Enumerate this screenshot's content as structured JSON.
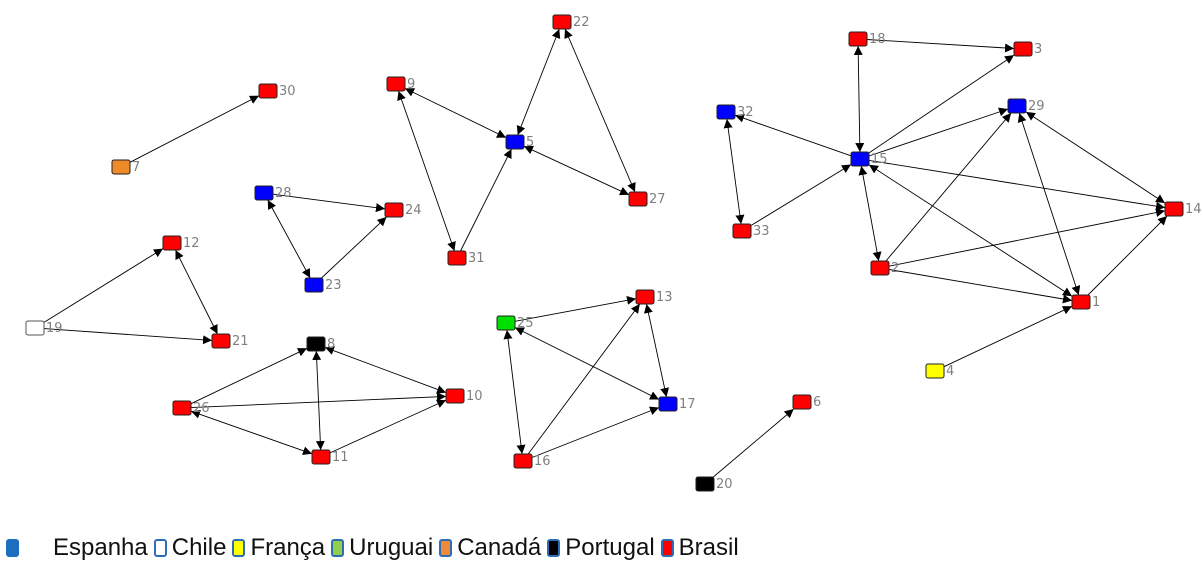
{
  "nodes": [
    {
      "id": "1",
      "country": "Brasil"
    },
    {
      "id": "2",
      "country": "Brasil"
    },
    {
      "id": "3",
      "country": "Brasil"
    },
    {
      "id": "4",
      "country": "França"
    },
    {
      "id": "5",
      "country": "Espanha"
    },
    {
      "id": "6",
      "country": "Brasil"
    },
    {
      "id": "7",
      "country": "Canadá"
    },
    {
      "id": "8",
      "country": "Portugal"
    },
    {
      "id": "9",
      "country": "Brasil"
    },
    {
      "id": "10",
      "country": "Brasil"
    },
    {
      "id": "11",
      "country": "Brasil"
    },
    {
      "id": "12",
      "country": "Brasil"
    },
    {
      "id": "13",
      "country": "Brasil"
    },
    {
      "id": "14",
      "country": "Brasil"
    },
    {
      "id": "15",
      "country": "Espanha"
    },
    {
      "id": "16",
      "country": "Brasil"
    },
    {
      "id": "17",
      "country": "Espanha"
    },
    {
      "id": "18",
      "country": "Brasil"
    },
    {
      "id": "19",
      "country": "Chile"
    },
    {
      "id": "20",
      "country": "Portugal"
    },
    {
      "id": "21",
      "country": "Brasil"
    },
    {
      "id": "22",
      "country": "Brasil"
    },
    {
      "id": "23",
      "country": "Espanha"
    },
    {
      "id": "24",
      "country": "Brasil"
    },
    {
      "id": "25",
      "country": "Uruguai"
    },
    {
      "id": "26",
      "country": "Brasil"
    },
    {
      "id": "27",
      "country": "Brasil"
    },
    {
      "id": "28",
      "country": "Espanha"
    },
    {
      "id": "29",
      "country": "Espanha"
    },
    {
      "id": "30",
      "country": "Brasil"
    },
    {
      "id": "31",
      "country": "Brasil"
    },
    {
      "id": "32",
      "country": "Espanha"
    },
    {
      "id": "33",
      "country": "Brasil"
    }
  ],
  "edges": [
    {
      "from": "7",
      "to": "30",
      "arrows": "end"
    },
    {
      "from": "19",
      "to": "12",
      "arrows": "end"
    },
    {
      "from": "19",
      "to": "21",
      "arrows": "end"
    },
    {
      "from": "12",
      "to": "21",
      "arrows": "both"
    },
    {
      "from": "28",
      "to": "24",
      "arrows": "end"
    },
    {
      "from": "28",
      "to": "23",
      "arrows": "both"
    },
    {
      "from": "23",
      "to": "24",
      "arrows": "end"
    },
    {
      "from": "9",
      "to": "5",
      "arrows": "both"
    },
    {
      "from": "9",
      "to": "31",
      "arrows": "both"
    },
    {
      "from": "31",
      "to": "5",
      "arrows": "end"
    },
    {
      "from": "22",
      "to": "5",
      "arrows": "both"
    },
    {
      "from": "22",
      "to": "27",
      "arrows": "both"
    },
    {
      "from": "5",
      "to": "27",
      "arrows": "both"
    },
    {
      "from": "8",
      "to": "26",
      "arrows": "start"
    },
    {
      "from": "8",
      "to": "10",
      "arrows": "both"
    },
    {
      "from": "8",
      "to": "11",
      "arrows": "both"
    },
    {
      "from": "26",
      "to": "10",
      "arrows": "end"
    },
    {
      "from": "26",
      "to": "11",
      "arrows": "both"
    },
    {
      "from": "11",
      "to": "10",
      "arrows": "end"
    },
    {
      "from": "25",
      "to": "13",
      "arrows": "end"
    },
    {
      "from": "25",
      "to": "17",
      "arrows": "both"
    },
    {
      "from": "25",
      "to": "16",
      "arrows": "both"
    },
    {
      "from": "13",
      "to": "17",
      "arrows": "both"
    },
    {
      "from": "16",
      "to": "13",
      "arrows": "end"
    },
    {
      "from": "16",
      "to": "17",
      "arrows": "end"
    },
    {
      "from": "20",
      "to": "6",
      "arrows": "end"
    },
    {
      "from": "4",
      "to": "1",
      "arrows": "end"
    },
    {
      "from": "18",
      "to": "3",
      "arrows": "end"
    },
    {
      "from": "18",
      "to": "15",
      "arrows": "both"
    },
    {
      "from": "15",
      "to": "3",
      "arrows": "end"
    },
    {
      "from": "15",
      "to": "29",
      "arrows": "end"
    },
    {
      "from": "15",
      "to": "32",
      "arrows": "end"
    },
    {
      "from": "33",
      "to": "32",
      "arrows": "both"
    },
    {
      "from": "33",
      "to": "15",
      "arrows": "end"
    },
    {
      "from": "15",
      "to": "14",
      "arrows": "end"
    },
    {
      "from": "15",
      "to": "2",
      "arrows": "both"
    },
    {
      "from": "15",
      "to": "1",
      "arrows": "both"
    },
    {
      "from": "2",
      "to": "29",
      "arrows": "end"
    },
    {
      "from": "2",
      "to": "14",
      "arrows": "end"
    },
    {
      "from": "2",
      "to": "1",
      "arrows": "end"
    },
    {
      "from": "29",
      "to": "1",
      "arrows": "both"
    },
    {
      "from": "29",
      "to": "14",
      "arrows": "both"
    },
    {
      "from": "1",
      "to": "14",
      "arrows": "end"
    }
  ],
  "legend": [
    {
      "label": "Espanha",
      "color": "#1e6fbf",
      "border": "#1e6fbf"
    },
    {
      "label": "Chile",
      "color": "#ffffff",
      "border": "#2e6db4"
    },
    {
      "label": "França",
      "color": "#ffff00",
      "border": "#2e6db4"
    },
    {
      "label": "Uruguai",
      "color": "#8fce4f",
      "border": "#2e6db4"
    },
    {
      "label": "Canadá",
      "color": "#ee8a3a",
      "border": "#2e6db4"
    },
    {
      "label": "Portugal",
      "color": "#000000",
      "border": "#2e6db4"
    },
    {
      "label": "Brasil",
      "color": "#ff0000",
      "border": "#2e6db4"
    }
  ],
  "node_colors": {
    "Espanha": "#0000ff",
    "Chile": "#ffffff",
    "França": "#ffff00",
    "Uruguai": "#00e000",
    "Canadá": "#ee8a2a",
    "Portugal": "#000000",
    "Brasil": "#ff0000"
  }
}
